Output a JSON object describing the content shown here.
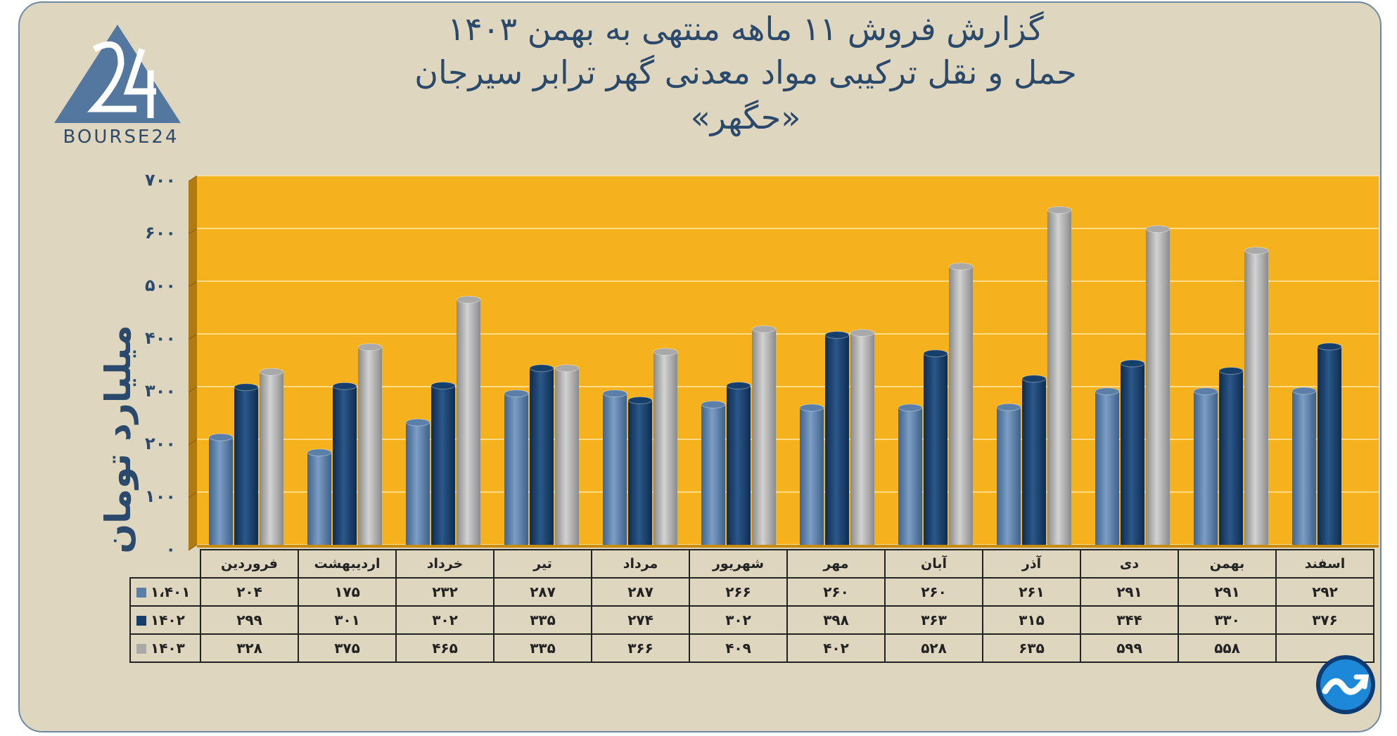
{
  "title": {
    "line1": "گزارش  فروش ۱۱ ماهه منتهی به بهمن ۱۴۰۳",
    "line2": "حمل و نقل ترکیبی مواد معدنی گهر ترابر سیرجان",
    "line3": "«حگهر»"
  },
  "logo": {
    "text": "BOURSE24"
  },
  "chart_data": {
    "type": "bar",
    "ylabel": "میلیارد تومان",
    "ylim": [
      0,
      700
    ],
    "yticks": [
      0,
      100,
      200,
      300,
      400,
      500,
      600,
      700
    ],
    "ytick_labels": [
      "۰",
      "۱۰۰",
      "۲۰۰",
      "۳۰۰",
      "۴۰۰",
      "۵۰۰",
      "۶۰۰",
      "۷۰۰"
    ],
    "categories": [
      "فروردین",
      "اردیبهشت",
      "خرداد",
      "تیر",
      "مرداد",
      "شهریور",
      "مهر",
      "آبان",
      "آذر",
      "دی",
      "بهمن",
      "اسفند"
    ],
    "series": [
      {
        "name": "۱،۴۰۱",
        "color": "#5b7fa8",
        "values": [
          204,
          175,
          232,
          287,
          287,
          266,
          260,
          260,
          261,
          291,
          291,
          292
        ],
        "labels": [
          "۲۰۴",
          "۱۷۵",
          "۲۳۲",
          "۲۸۷",
          "۲۸۷",
          "۲۶۶",
          "۲۶۰",
          "۲۶۰",
          "۲۶۱",
          "۲۹۱",
          "۲۹۱",
          "۲۹۲"
        ]
      },
      {
        "name": "۱۴۰۲",
        "color": "#173f6b",
        "values": [
          299,
          301,
          302,
          335,
          274,
          302,
          398,
          363,
          315,
          344,
          330,
          376
        ],
        "labels": [
          "۲۹۹",
          "۳۰۱",
          "۳۰۲",
          "۳۳۵",
          "۲۷۴",
          "۳۰۲",
          "۳۹۸",
          "۳۶۳",
          "۳۱۵",
          "۳۴۴",
          "۳۳۰",
          "۳۷۶"
        ]
      },
      {
        "name": "۱۴۰۳",
        "color": "#a9a9a9",
        "values": [
          328,
          375,
          465,
          335,
          366,
          409,
          402,
          528,
          635,
          599,
          558,
          null
        ],
        "labels": [
          "۳۲۸",
          "۳۷۵",
          "۴۶۵",
          "۳۳۵",
          "۳۶۶",
          "۴۰۹",
          "۴۰۲",
          "۵۲۸",
          "۶۳۵",
          "۵۹۹",
          "۵۵۸",
          ""
        ]
      }
    ],
    "grid": true,
    "legend": "data-table-below"
  },
  "colors": {
    "background": "#dfd6c0",
    "plot": "#f6b21c",
    "text": "#2b4a6b"
  }
}
